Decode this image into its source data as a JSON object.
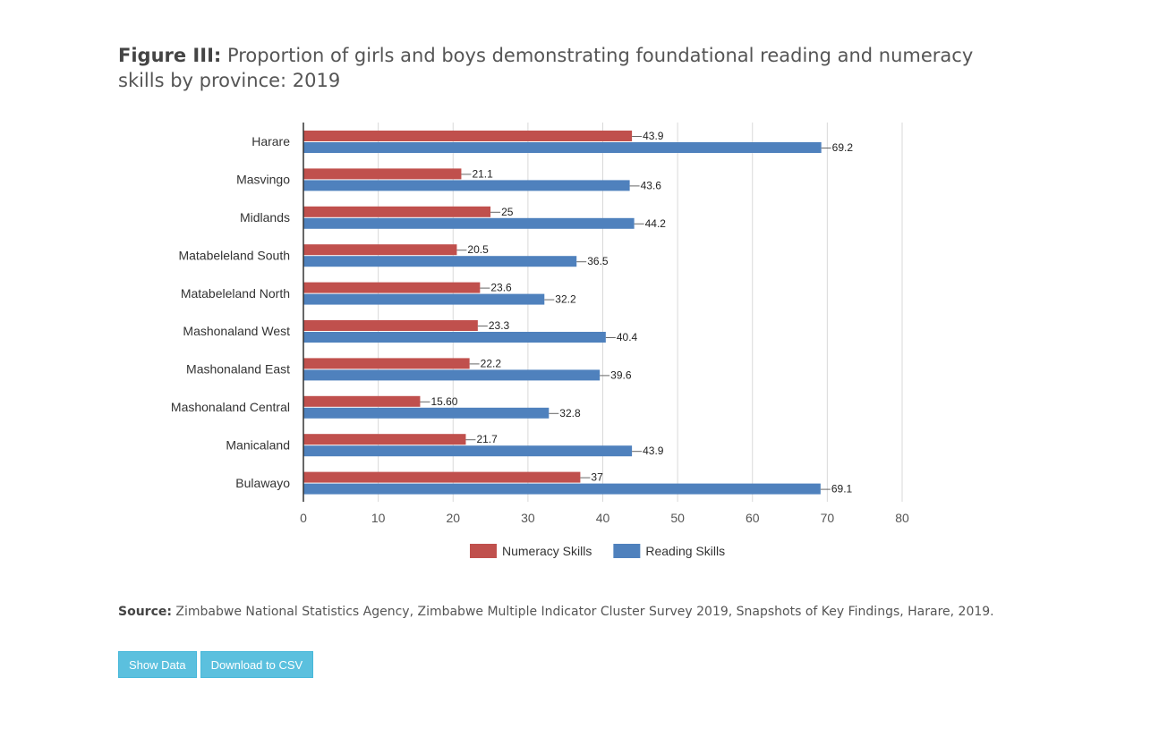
{
  "figure": {
    "title_prefix": "Figure III:",
    "title_text": "Proportion of girls and boys demonstrating foundational reading and numeracy skills by province: 2019"
  },
  "chart_data": {
    "type": "bar",
    "orientation": "horizontal",
    "categories": [
      "Harare",
      "Masvingo",
      "Midlands",
      "Matabeleland South",
      "Matabeleland North",
      "Mashonaland West",
      "Mashonaland East",
      "Mashonaland Central",
      "Manicaland",
      "Bulawayo"
    ],
    "series": [
      {
        "name": "Numeracy Skills",
        "color": "#c0504d",
        "values": [
          43.9,
          21.1,
          25,
          20.5,
          23.6,
          23.3,
          22.2,
          15.6,
          21.7,
          37
        ],
        "labels": [
          "43.9",
          "21.1",
          "25",
          "20.5",
          "23.6",
          "23.3",
          "22.2",
          "15.60",
          "21.7",
          "37"
        ]
      },
      {
        "name": "Reading Skills",
        "color": "#4f81bd",
        "values": [
          69.2,
          43.6,
          44.2,
          36.5,
          32.2,
          40.4,
          39.6,
          32.8,
          43.9,
          69.1
        ],
        "labels": [
          "69.2",
          "43.6",
          "44.2",
          "36.5",
          "32.2",
          "40.4",
          "39.6",
          "32.8",
          "43.9",
          "69.1"
        ]
      }
    ],
    "xlim": [
      0,
      80
    ],
    "xticks": [
      0,
      10,
      20,
      30,
      40,
      50,
      60,
      70,
      80
    ],
    "grid": true,
    "legend_position": "bottom"
  },
  "source": {
    "prefix": "Source:",
    "text": "Zimbabwe National Statistics Agency, Zimbabwe Multiple Indicator Cluster Survey 2019, Snapshots of Key Findings, Harare, 2019."
  },
  "buttons": {
    "show_data": "Show Data",
    "download_csv": "Download to CSV"
  }
}
